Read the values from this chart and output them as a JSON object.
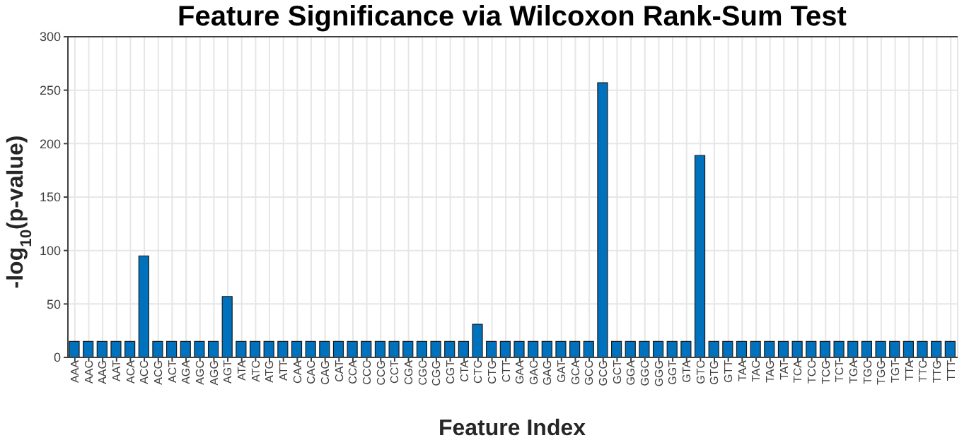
{
  "chart_data": {
    "type": "bar",
    "title": "Feature Significance via Wilcoxon Rank-Sum Test",
    "xlabel": "Feature Index",
    "ylabel": "-log$_{10}$(p-value)",
    "categories": [
      "AAA",
      "AAC",
      "AAG",
      "AAT",
      "ACA",
      "ACC",
      "ACG",
      "ACT",
      "AGA",
      "AGC",
      "AGG",
      "AGT",
      "ATA",
      "ATC",
      "ATG",
      "ATT",
      "CAA",
      "CAC",
      "CAG",
      "CAT",
      "CCA",
      "CCC",
      "CCG",
      "CCT",
      "CGA",
      "CGC",
      "CGG",
      "CGT",
      "CTA",
      "CTC",
      "CTG",
      "CTT",
      "GAA",
      "GAC",
      "GAG",
      "GAT",
      "GCA",
      "GCC",
      "GCG",
      "GCT",
      "GGA",
      "GGC",
      "GGG",
      "GGT",
      "GTA",
      "GTC",
      "GTG",
      "GTT",
      "TAA",
      "TAC",
      "TAG",
      "TAT",
      "TCA",
      "TCC",
      "TCG",
      "TCT",
      "TGA",
      "TGC",
      "TGG",
      "TGT",
      "TTA",
      "TTC",
      "TTG",
      "TTT"
    ],
    "values": [
      15,
      15,
      15,
      15,
      15,
      95,
      15,
      15,
      15,
      15,
      15,
      57,
      15,
      15,
      15,
      15,
      15,
      15,
      15,
      15,
      15,
      15,
      15,
      15,
      15,
      15,
      15,
      15,
      15,
      31,
      15,
      15,
      15,
      15,
      15,
      15,
      15,
      15,
      257,
      15,
      15,
      15,
      15,
      15,
      15,
      189,
      15,
      15,
      15,
      15,
      15,
      15,
      15,
      15,
      15,
      15,
      15,
      15,
      15,
      15,
      15,
      15,
      15,
      15
    ],
    "color": "#0072bd",
    "ylim": [
      0,
      300
    ],
    "yticks": [
      0,
      50,
      100,
      150,
      200,
      250,
      300
    ],
    "grid": true
  }
}
